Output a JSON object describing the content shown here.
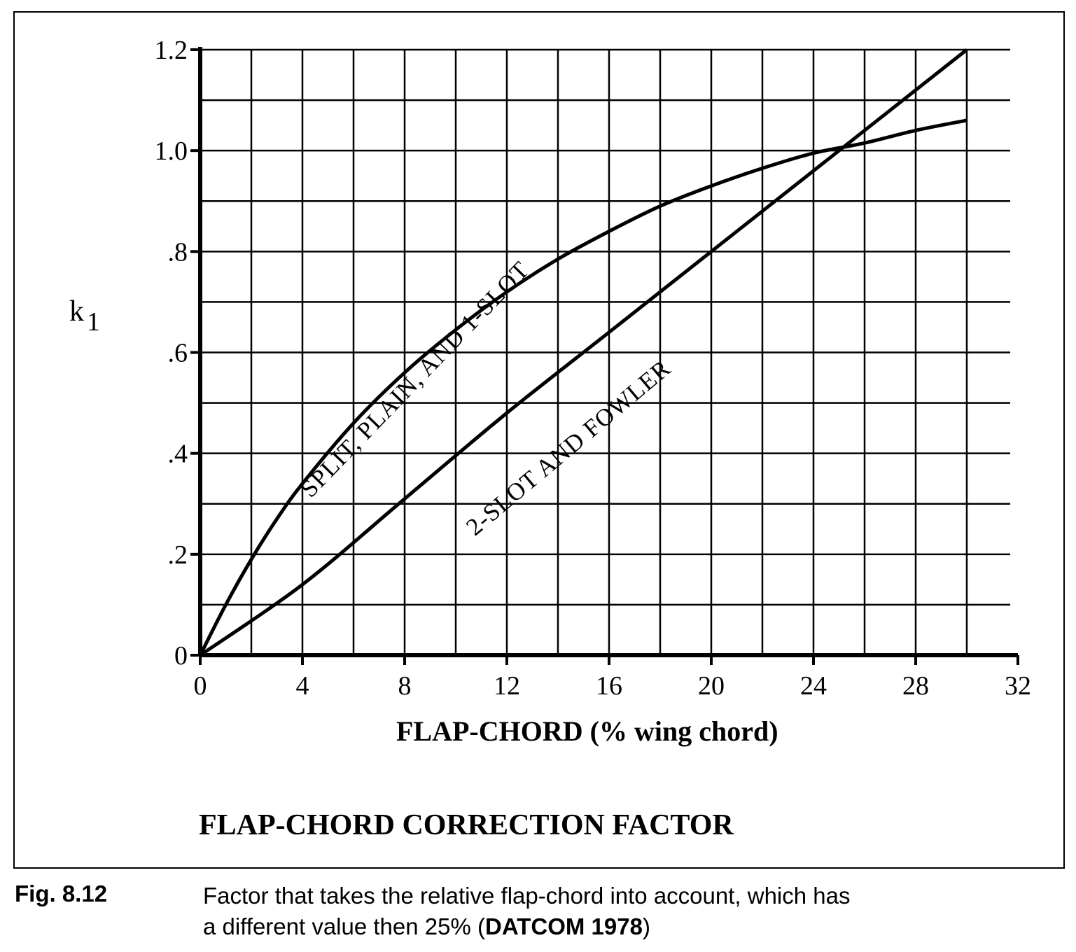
{
  "chart_data": {
    "type": "line",
    "title": "FLAP-CHORD CORRECTION FACTOR",
    "xlabel": "FLAP-CHORD (% wing chord)",
    "ylabel": "k",
    "ylabel_sub": "1",
    "xlim": [
      0,
      32
    ],
    "ylim": [
      0,
      1.2
    ],
    "x_ticks": [
      0,
      4,
      8,
      12,
      16,
      20,
      24,
      28,
      32
    ],
    "x_tick_labels": [
      "0",
      "4",
      "8",
      "12",
      "16",
      "20",
      "24",
      "28",
      "32"
    ],
    "y_ticks": [
      0,
      0.2,
      0.4,
      0.6,
      0.8,
      1.0,
      1.2
    ],
    "y_tick_labels": [
      "0",
      ".2",
      ".4",
      ".6",
      ".8",
      "1.0",
      "1.2"
    ],
    "grid": true,
    "grid_step_x": 2,
    "grid_step_y": 0.1,
    "series": [
      {
        "name": "SPLIT, PLAIN, AND 1-SLOT",
        "x": [
          0,
          1,
          2,
          3,
          4,
          6,
          8,
          10,
          12,
          14,
          16,
          18,
          20,
          22,
          24,
          26,
          28,
          30
        ],
        "values": [
          0,
          0.1,
          0.19,
          0.27,
          0.34,
          0.46,
          0.56,
          0.645,
          0.72,
          0.785,
          0.84,
          0.89,
          0.93,
          0.965,
          0.995,
          1.015,
          1.04,
          1.06
        ]
      },
      {
        "name": "2-SLOT AND FOWLER",
        "x": [
          0,
          4,
          8,
          12,
          16,
          20,
          24,
          25,
          28,
          30
        ],
        "values": [
          0,
          0.14,
          0.31,
          0.48,
          0.64,
          0.8,
          0.96,
          1.0,
          1.12,
          1.2
        ]
      }
    ]
  },
  "caption": {
    "number": "Fig. 8.12",
    "line1": "Factor that takes the relative flap-chord into account, which has",
    "line2_prefix": "a different value then 25% (",
    "line2_bold": "DATCOM 1978",
    "line2_suffix": ")"
  }
}
